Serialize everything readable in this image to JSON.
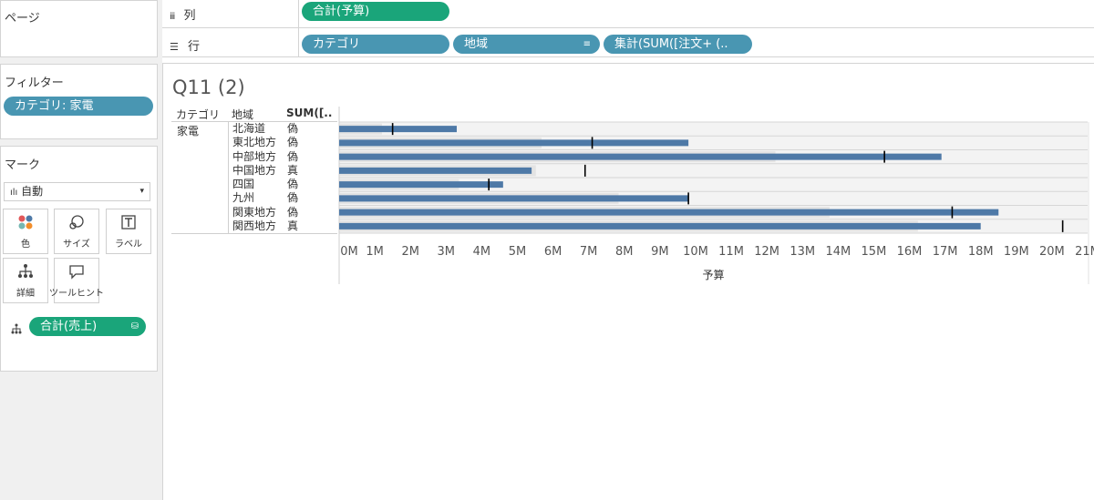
{
  "sidebar": {
    "pages_title": "ページ",
    "filters_title": "フィルター",
    "filter_pill": "カテゴリ: 家電",
    "marks_title": "マーク",
    "mark_type": "自動",
    "mark_buttons": [
      {
        "label": "色",
        "icon": "color-dots-icon"
      },
      {
        "label": "サイズ",
        "icon": "size-icon"
      },
      {
        "label": "ラベル",
        "icon": "label-icon"
      },
      {
        "label": "詳細",
        "icon": "detail-icon"
      },
      {
        "label": "ツールヒント",
        "icon": "tooltip-icon"
      }
    ],
    "mark_field_pill": "合計(売上)"
  },
  "shelves": {
    "columns_label": "列",
    "rows_label": "行",
    "columns_pill": "合計(予算)",
    "rows_pills": [
      "カテゴリ",
      "地域",
      "集計(SUM([注文+ (.."
    ]
  },
  "view": {
    "title": "Q11 (2)",
    "headers": [
      "カテゴリ",
      "地域",
      "SUM([.."
    ],
    "category": "家電"
  },
  "chart_data": {
    "type": "bar",
    "orientation": "horizontal",
    "categories": [
      "北海道",
      "東北地方",
      "中部地方",
      "中国地方",
      "四国",
      "九州",
      "関東地方",
      "関西地方"
    ],
    "flags": [
      "偽",
      "偽",
      "偽",
      "真",
      "偽",
      "偽",
      "偽",
      "真"
    ],
    "series": [
      {
        "name": "予算",
        "values": [
          3300000,
          9800000,
          16900000,
          5400000,
          4600000,
          9800000,
          18500000,
          18000000
        ]
      }
    ],
    "reference_lines": [
      1500000,
      7100000,
      15300000,
      6900000,
      4200000,
      9800000,
      17200000,
      20300000
    ],
    "xlabel": "予算",
    "xlim": [
      0,
      21000000
    ],
    "xticks": [
      "0M",
      "1M",
      "2M",
      "3M",
      "4M",
      "5M",
      "6M",
      "7M",
      "8M",
      "9M",
      "10M",
      "11M",
      "12M",
      "13M",
      "14M",
      "15M",
      "16M",
      "17M",
      "18M",
      "19M",
      "20M",
      "21M"
    ],
    "colors": {
      "bar": "#4e79a7",
      "reference": "#000000",
      "band": "#d9d9d9"
    }
  }
}
